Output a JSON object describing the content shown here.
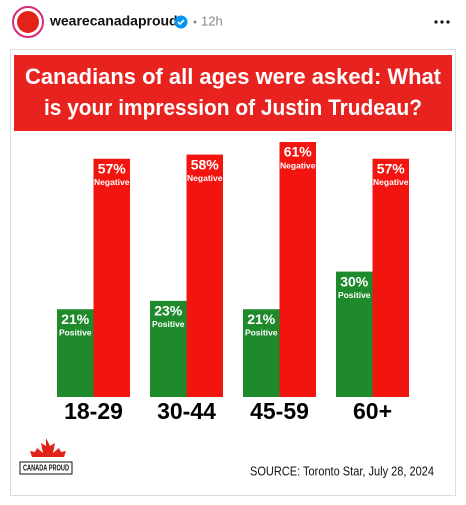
{
  "post": {
    "username": "wearecanadaproud",
    "time": "12h",
    "logo_text": "CANADA PROUD"
  },
  "chart_data": {
    "type": "bar",
    "title": [
      "Canadians of all ages were asked: What",
      "is your impression of Justin Trudeau?"
    ],
    "categories": [
      "18-29",
      "30-44",
      "45-59",
      "60+"
    ],
    "series": [
      {
        "name": "Positive",
        "color": "#1f8a2c",
        "values": [
          21,
          23,
          21,
          30
        ],
        "value_labels": [
          "21%",
          "23%",
          "21%",
          "30%"
        ]
      },
      {
        "name": "Negative",
        "color": "#f2140f",
        "values": [
          57,
          58,
          61,
          57
        ],
        "value_labels": [
          "57%",
          "58%",
          "61%",
          "57%"
        ]
      }
    ],
    "source": "SOURCE: Toronto Star, July 28, 2024"
  }
}
